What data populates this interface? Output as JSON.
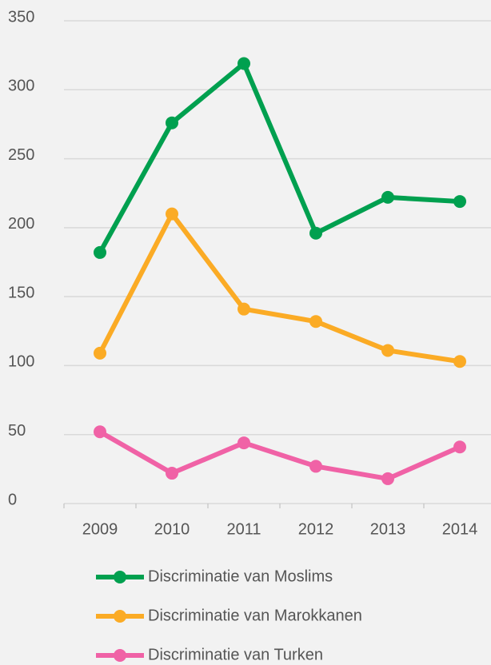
{
  "chart_data": {
    "type": "line",
    "categories": [
      "2009",
      "2010",
      "2011",
      "2012",
      "2013",
      "2014"
    ],
    "series": [
      {
        "name": "Discriminatie van Moslims",
        "color": "#00a04f",
        "values": [
          182,
          276,
          319,
          196,
          222,
          219
        ]
      },
      {
        "name": "Discriminatie van Marokkanen",
        "color": "#fbab25",
        "values": [
          109,
          210,
          141,
          132,
          111,
          103
        ]
      },
      {
        "name": "Discriminatie van Turken",
        "color": "#f062a6",
        "values": [
          52,
          22,
          44,
          27,
          18,
          41
        ]
      }
    ],
    "ylim": [
      0,
      350
    ],
    "yticks": [
      0,
      50,
      100,
      150,
      200,
      250,
      300,
      350
    ],
    "grid": true,
    "legend": "bottom"
  }
}
